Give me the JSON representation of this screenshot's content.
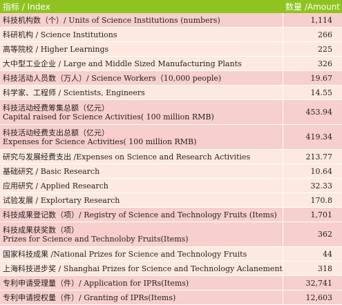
{
  "header": {
    "index": "指标 / Index",
    "amount": "数量 /Amount"
  },
  "rows": [
    {
      "level": "top",
      "label": "科技机构数（个）/ Units of Science Institutions (numbers)",
      "value": "1,114"
    },
    {
      "level": "sub",
      "label": "科研机构 / Science Institutions",
      "value": "266"
    },
    {
      "level": "sub",
      "label": "高等院校 / Higher Learnings",
      "value": "225"
    },
    {
      "level": "sub",
      "label": "大中型工业企业 /  Large and Middle Sized Manufacturing Plants",
      "value": "326"
    },
    {
      "level": "top",
      "label": "科技活动人员数（万人）/ Science Workers（10,000 people)",
      "value": "19.67"
    },
    {
      "level": "sub",
      "label": "科学家、工程师 / Scientists, Engineers",
      "value": "14.55"
    },
    {
      "level": "top",
      "label": "科技活动经费筹集总额（亿元）",
      "label2": "Capital raised for Science Activities( 100 million RMB)",
      "value": "453.94"
    },
    {
      "level": "top",
      "label": "科技活动经费支出总额（亿元）",
      "label2": "Expenses for Science Activities( 100 million RMB)",
      "value": "419.34"
    },
    {
      "level": "sub",
      "label": "研究与发展经费支出 /Expenses on Science and Research Activities",
      "value": "213.77"
    },
    {
      "level": "sub",
      "label": "基础研究 / Basic Research",
      "value": "10.64"
    },
    {
      "level": "sub",
      "label": "应用研究 / Applied Research",
      "value": "32.33"
    },
    {
      "level": "sub",
      "label": "试验发展 / Explortary Research",
      "value": "170.8"
    },
    {
      "level": "top",
      "label": "科技成果登记数（项）/ Registry of Science and Technology Fruits (Items)",
      "value": "1,701"
    },
    {
      "level": "top",
      "label": "科技成果获奖数（项）",
      "label2": "Prizes for Science and Technoloby Fruits(Items)",
      "value": "362"
    },
    {
      "level": "sub",
      "label": "国家科技成果 /National Prizes for Science and Technology Fruits",
      "value": "44"
    },
    {
      "level": "sub",
      "label": "上海科技进步奖 / Shanghai Prizes for Science and Technology Aclanement",
      "value": "318"
    },
    {
      "level": "top",
      "label": "专利申请受理量（件）/ Application for IPRs(Items)",
      "value": "32,741"
    },
    {
      "level": "top",
      "label": "专利申请授权量（件）/ Granting of IPRs(Items)",
      "value": "12,603"
    }
  ]
}
